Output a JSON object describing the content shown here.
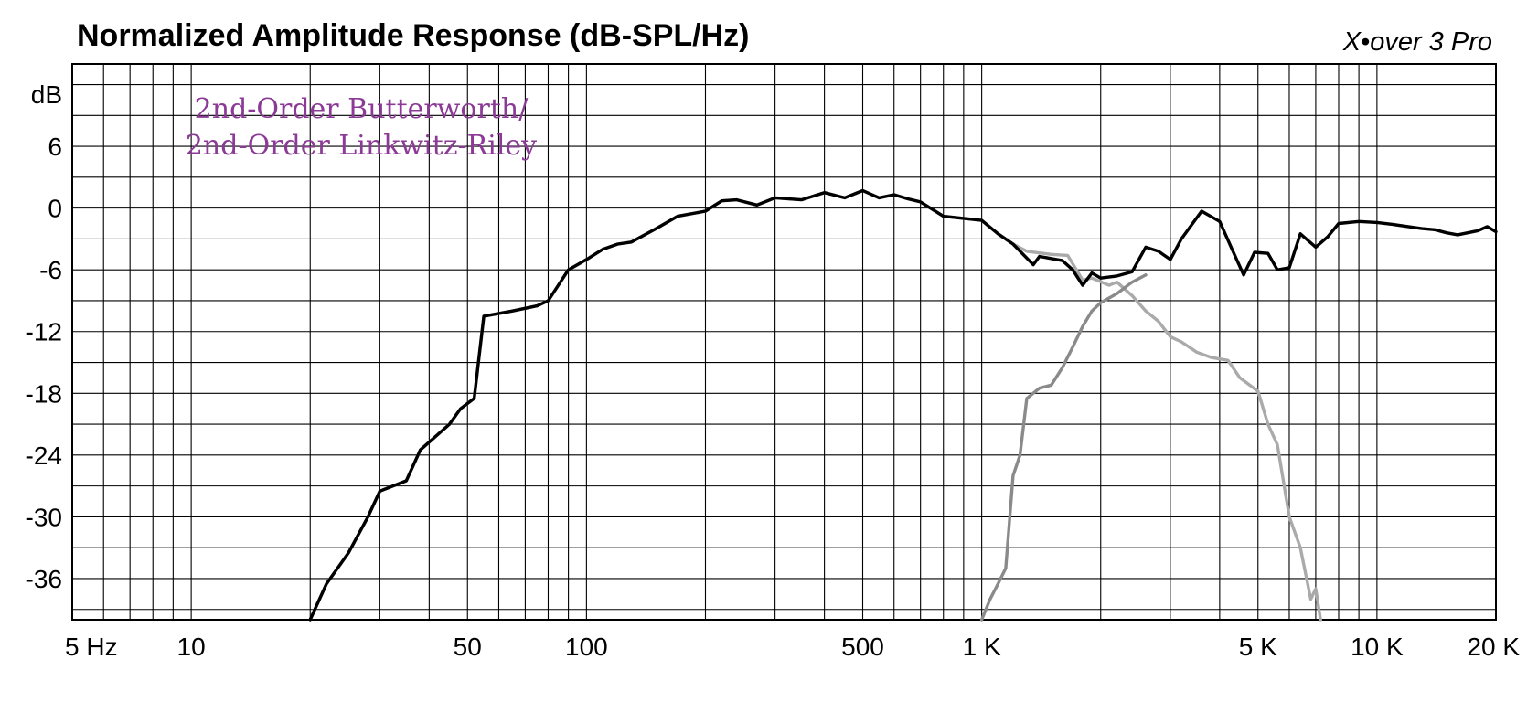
{
  "header": {
    "title": "Normalized Amplitude Response (dB-SPL/Hz)",
    "brand": "X•over 3 Pro"
  },
  "chart_data": {
    "type": "line",
    "title": "Normalized Amplitude Response (dB-SPL/Hz)",
    "xscale": "log",
    "xlim": [
      5,
      20000
    ],
    "ylim": [
      -40,
      14
    ],
    "y_unit_label": "dB",
    "x_ticks": [
      {
        "value": 5,
        "label": "5 Hz"
      },
      {
        "value": 10,
        "label": "10"
      },
      {
        "value": 50,
        "label": "50"
      },
      {
        "value": 100,
        "label": "100"
      },
      {
        "value": 500,
        "label": "500"
      },
      {
        "value": 1000,
        "label": "1 K"
      },
      {
        "value": 5000,
        "label": "5 K"
      },
      {
        "value": 10000,
        "label": "10 K"
      },
      {
        "value": 20000,
        "label": "20 K"
      }
    ],
    "y_ticks": [
      {
        "value": 6,
        "label": "6"
      },
      {
        "value": 0,
        "label": "0"
      },
      {
        "value": -6,
        "label": "-6"
      },
      {
        "value": -12,
        "label": "-12"
      },
      {
        "value": -18,
        "label": "-18"
      },
      {
        "value": -24,
        "label": "-24"
      },
      {
        "value": -30,
        "label": "-30"
      },
      {
        "value": -36,
        "label": "-36"
      }
    ],
    "grid": true,
    "annotation": {
      "lines": [
        "2nd-Order Butterworth/",
        "2nd-Order Linkwitz-Riley"
      ],
      "color": "#8b3a96"
    },
    "series": [
      {
        "color": "#aaaaaa",
        "points": [
          [
            20,
            -40
          ],
          [
            22,
            -36.5
          ],
          [
            25,
            -33.5
          ],
          [
            28,
            -30
          ],
          [
            30,
            -27.5
          ],
          [
            35,
            -26.5
          ],
          [
            38,
            -23.5
          ],
          [
            45,
            -21
          ],
          [
            48,
            -19.5
          ],
          [
            52,
            -18.5
          ],
          [
            55,
            -10.5
          ],
          [
            65,
            -10
          ],
          [
            75,
            -9.5
          ],
          [
            80,
            -9
          ],
          [
            90,
            -6
          ],
          [
            100,
            -5
          ],
          [
            110,
            -4
          ],
          [
            120,
            -3.5
          ],
          [
            130,
            -3.3
          ],
          [
            150,
            -2
          ],
          [
            170,
            -0.8
          ],
          [
            200,
            -0.3
          ],
          [
            220,
            0.7
          ],
          [
            240,
            0.8
          ],
          [
            270,
            0.3
          ],
          [
            300,
            1.0
          ],
          [
            350,
            0.8
          ],
          [
            400,
            1.5
          ],
          [
            450,
            1.0
          ],
          [
            500,
            1.7
          ],
          [
            550,
            1.0
          ],
          [
            600,
            1.3
          ],
          [
            650,
            0.9
          ],
          [
            700,
            0.6
          ],
          [
            800,
            -0.8
          ],
          [
            900,
            -1.0
          ],
          [
            1000,
            -1.2
          ],
          [
            1100,
            -2.5
          ],
          [
            1200,
            -3.5
          ],
          [
            1300,
            -4.2
          ],
          [
            1500,
            -4.5
          ],
          [
            1650,
            -4.6
          ],
          [
            1800,
            -7.0
          ],
          [
            1900,
            -6.8
          ],
          [
            2100,
            -7.5
          ],
          [
            2200,
            -7.2
          ],
          [
            2400,
            -8.5
          ],
          [
            2600,
            -10
          ],
          [
            2800,
            -11
          ],
          [
            3000,
            -12.5
          ],
          [
            3200,
            -13
          ],
          [
            3500,
            -14
          ],
          [
            3800,
            -14.5
          ],
          [
            4200,
            -14.8
          ],
          [
            4500,
            -16.5
          ],
          [
            5000,
            -17.8
          ],
          [
            5300,
            -21
          ],
          [
            5600,
            -23
          ],
          [
            6000,
            -30
          ],
          [
            6400,
            -33
          ],
          [
            6800,
            -38
          ],
          [
            7000,
            -37
          ],
          [
            7200,
            -40
          ]
        ]
      },
      {
        "color": "#8a8a8a",
        "points": [
          [
            1000,
            -40
          ],
          [
            1050,
            -38
          ],
          [
            1100,
            -36.5
          ],
          [
            1150,
            -35
          ],
          [
            1200,
            -26
          ],
          [
            1250,
            -24
          ],
          [
            1300,
            -18.5
          ],
          [
            1400,
            -17.5
          ],
          [
            1500,
            -17.2
          ],
          [
            1600,
            -15.5
          ],
          [
            1700,
            -13.5
          ],
          [
            1800,
            -11.5
          ],
          [
            1900,
            -10
          ],
          [
            2000,
            -9.2
          ],
          [
            2200,
            -8.3
          ],
          [
            2400,
            -7.2
          ],
          [
            2600,
            -6.5
          ]
        ]
      },
      {
        "color": "#000000",
        "points": [
          [
            20,
            -40
          ],
          [
            22,
            -36.5
          ],
          [
            25,
            -33.5
          ],
          [
            28,
            -30
          ],
          [
            30,
            -27.5
          ],
          [
            35,
            -26.5
          ],
          [
            38,
            -23.5
          ],
          [
            45,
            -21
          ],
          [
            48,
            -19.5
          ],
          [
            52,
            -18.5
          ],
          [
            55,
            -10.5
          ],
          [
            65,
            -10
          ],
          [
            75,
            -9.5
          ],
          [
            80,
            -9
          ],
          [
            90,
            -6
          ],
          [
            100,
            -5
          ],
          [
            110,
            -4
          ],
          [
            120,
            -3.5
          ],
          [
            130,
            -3.3
          ],
          [
            150,
            -2
          ],
          [
            170,
            -0.8
          ],
          [
            200,
            -0.3
          ],
          [
            220,
            0.7
          ],
          [
            240,
            0.8
          ],
          [
            270,
            0.3
          ],
          [
            300,
            1.0
          ],
          [
            350,
            0.8
          ],
          [
            400,
            1.5
          ],
          [
            450,
            1.0
          ],
          [
            500,
            1.7
          ],
          [
            550,
            1.0
          ],
          [
            600,
            1.3
          ],
          [
            650,
            0.9
          ],
          [
            700,
            0.6
          ],
          [
            800,
            -0.8
          ],
          [
            900,
            -1.0
          ],
          [
            1000,
            -1.2
          ],
          [
            1100,
            -2.5
          ],
          [
            1200,
            -3.5
          ],
          [
            1350,
            -5.5
          ],
          [
            1400,
            -4.7
          ],
          [
            1600,
            -5.1
          ],
          [
            1700,
            -6.0
          ],
          [
            1800,
            -7.5
          ],
          [
            1900,
            -6.3
          ],
          [
            2000,
            -6.8
          ],
          [
            2200,
            -6.6
          ],
          [
            2400,
            -6.2
          ],
          [
            2600,
            -3.8
          ],
          [
            2800,
            -4.2
          ],
          [
            3000,
            -5.0
          ],
          [
            3200,
            -3.0
          ],
          [
            3600,
            -0.3
          ],
          [
            4000,
            -1.3
          ],
          [
            4300,
            -4.0
          ],
          [
            4600,
            -6.5
          ],
          [
            4900,
            -4.3
          ],
          [
            5300,
            -4.4
          ],
          [
            5600,
            -6.0
          ],
          [
            6000,
            -5.8
          ],
          [
            6400,
            -2.5
          ],
          [
            7000,
            -3.8
          ],
          [
            7500,
            -2.8
          ],
          [
            8000,
            -1.5
          ],
          [
            9000,
            -1.3
          ],
          [
            10000,
            -1.4
          ],
          [
            11000,
            -1.6
          ],
          [
            12000,
            -1.8
          ],
          [
            13000,
            -2.0
          ],
          [
            14000,
            -2.1
          ],
          [
            15000,
            -2.4
          ],
          [
            16000,
            -2.6
          ],
          [
            18000,
            -2.2
          ],
          [
            19000,
            -1.8
          ],
          [
            20000,
            -2.3
          ]
        ]
      }
    ]
  }
}
